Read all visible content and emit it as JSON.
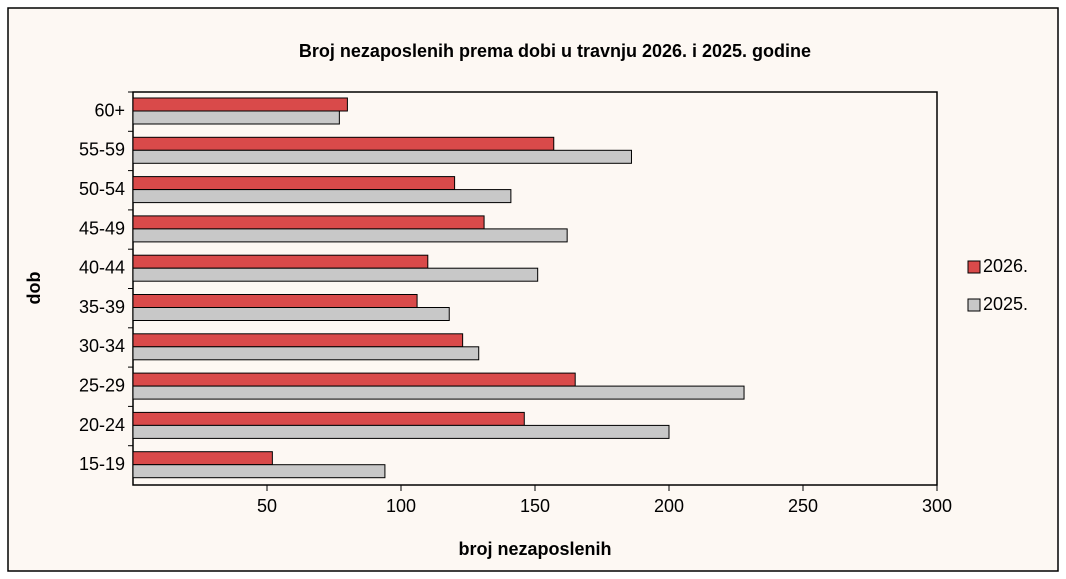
{
  "chart_data": {
    "type": "hbar",
    "title": "Broj nezaposlenih  prema dobi u travnju  2026. i 2025. godine",
    "xlabel": "broj nezaposlenih",
    "ylabel": "dob",
    "categories": [
      "15-19",
      "20-24",
      "25-29",
      "30-34",
      "35-39",
      "40-44",
      "45-49",
      "50-54",
      "55-59",
      "60+"
    ],
    "series": [
      {
        "name": "2026.",
        "color": "#d94a4a",
        "values": [
          52,
          146,
          165,
          123,
          106,
          110,
          131,
          120,
          157,
          80
        ]
      },
      {
        "name": "2025.",
        "color": "#c8c8c8",
        "values": [
          94,
          200,
          228,
          129,
          118,
          151,
          162,
          141,
          186,
          77
        ]
      }
    ],
    "xlim": [
      0,
      300
    ],
    "xticks": [
      50,
      100,
      150,
      200,
      250,
      300
    ],
    "legend": "right"
  }
}
